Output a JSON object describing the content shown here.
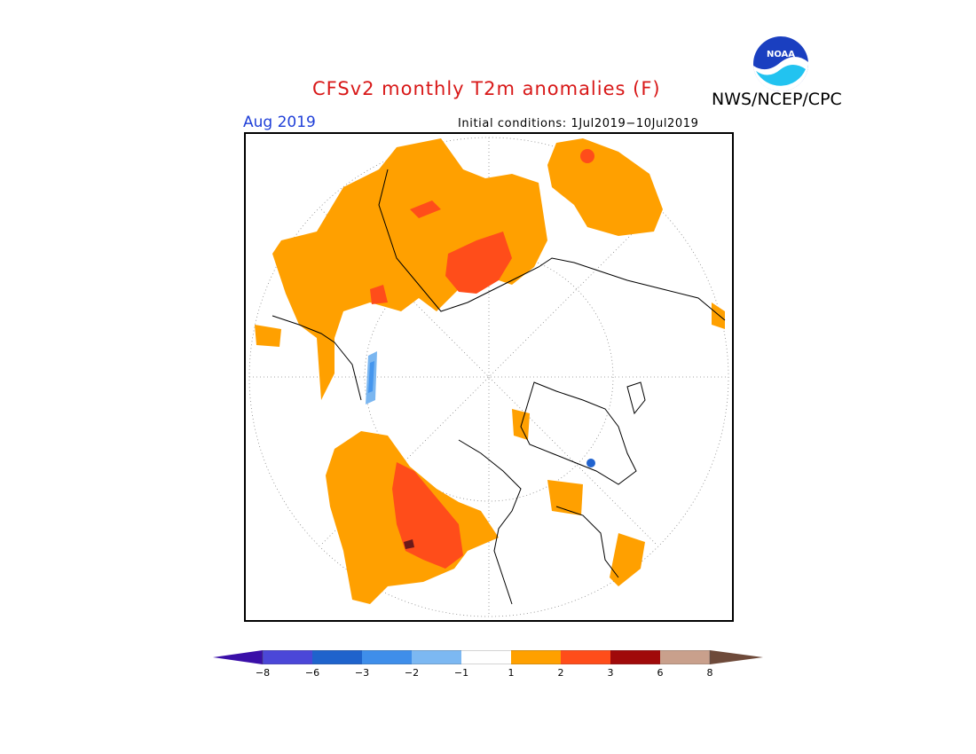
{
  "header": {
    "title": "CFSv2 monthly T2m anomalies (F)",
    "organization": "NWS/NCEP/CPC",
    "logo_text": "NOAA",
    "period": "Aug 2019",
    "initial_conditions": "Initial conditions: 1Jul2019−10Jul2019"
  },
  "colors": {
    "land_outline": "#000000",
    "plus1_to_2": "#ffa000",
    "plus2_to_3": "#ff4d1a",
    "plus3_to_6": "#a00000",
    "minus1_to_2": "#7ab6f0",
    "minus2_to_3": "#4596ee",
    "minus3_to_6": "#2163cf"
  },
  "colorbar": {
    "labels": [
      "−8",
      "−6",
      "−3",
      "−2",
      "−1",
      "1",
      "2",
      "3",
      "6",
      "8"
    ],
    "bins": [
      {
        "color": "#3a0fa8"
      },
      {
        "color": "#4b47d8"
      },
      {
        "color": "#1f63cc"
      },
      {
        "color": "#3f8eea"
      },
      {
        "color": "#7cb8f2"
      },
      {
        "color": "#ffffff"
      },
      {
        "color": "#ffa000"
      },
      {
        "color": "#ff4d1a"
      },
      {
        "color": "#a00a0a"
      },
      {
        "color": "#c9a08c"
      },
      {
        "color": "#6e4a3a"
      }
    ]
  }
}
